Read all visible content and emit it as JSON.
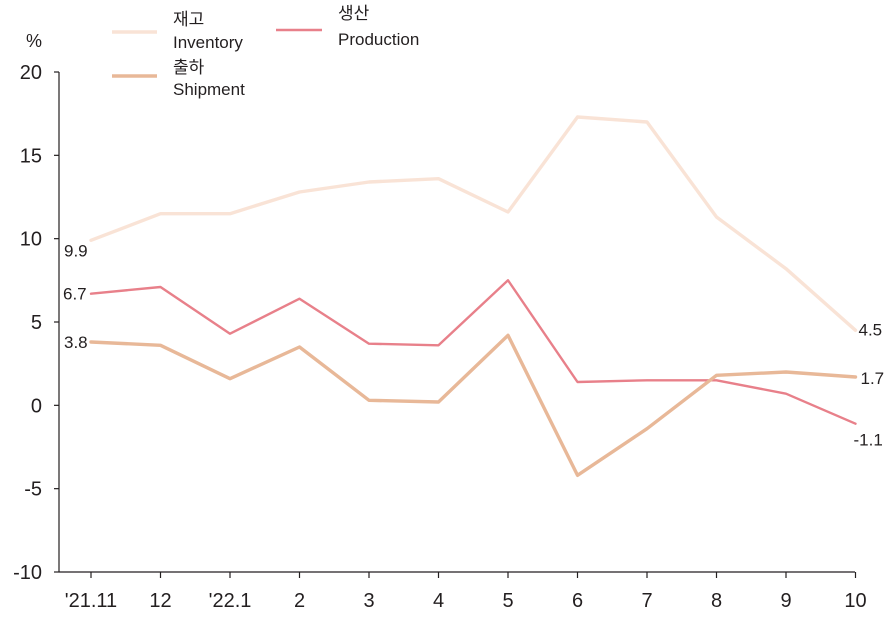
{
  "chart_data": {
    "type": "line",
    "title": "",
    "unit_label": "%",
    "xlabel": "",
    "ylabel": "",
    "categories": [
      "'21.11",
      "12",
      "'22.1",
      "2",
      "3",
      "4",
      "5",
      "6",
      "7",
      "8",
      "9",
      "10"
    ],
    "ylim": [
      -10,
      20
    ],
    "yticks": [
      -10,
      -5,
      0,
      5,
      10,
      15,
      20
    ],
    "grid": false,
    "legend_position": "top",
    "series": [
      {
        "key": "inventory",
        "name_ko": "재고",
        "name_en": "Inventory",
        "color": "#f9e3d6",
        "values": [
          9.9,
          11.5,
          11.5,
          12.8,
          13.4,
          13.6,
          11.6,
          17.3,
          17.0,
          11.3,
          8.2,
          4.5
        ],
        "labels": {
          "0": "9.9",
          "11": "4.5"
        }
      },
      {
        "key": "production",
        "name_ko": "생산",
        "name_en": "Production",
        "color": "#e8808a",
        "values": [
          6.7,
          7.1,
          4.3,
          6.4,
          3.7,
          3.6,
          7.5,
          1.4,
          1.5,
          1.5,
          0.7,
          -1.1
        ],
        "labels": {
          "0": "6.7",
          "11": "-1.1"
        }
      },
      {
        "key": "shipment",
        "name_ko": "출하",
        "name_en": "Shipment",
        "color": "#e8b898",
        "values": [
          3.8,
          3.6,
          1.6,
          3.5,
          0.3,
          0.2,
          4.2,
          -4.2,
          -1.4,
          1.8,
          2.0,
          1.7
        ],
        "labels": {
          "0": "3.8",
          "11": "1.7"
        }
      }
    ]
  }
}
